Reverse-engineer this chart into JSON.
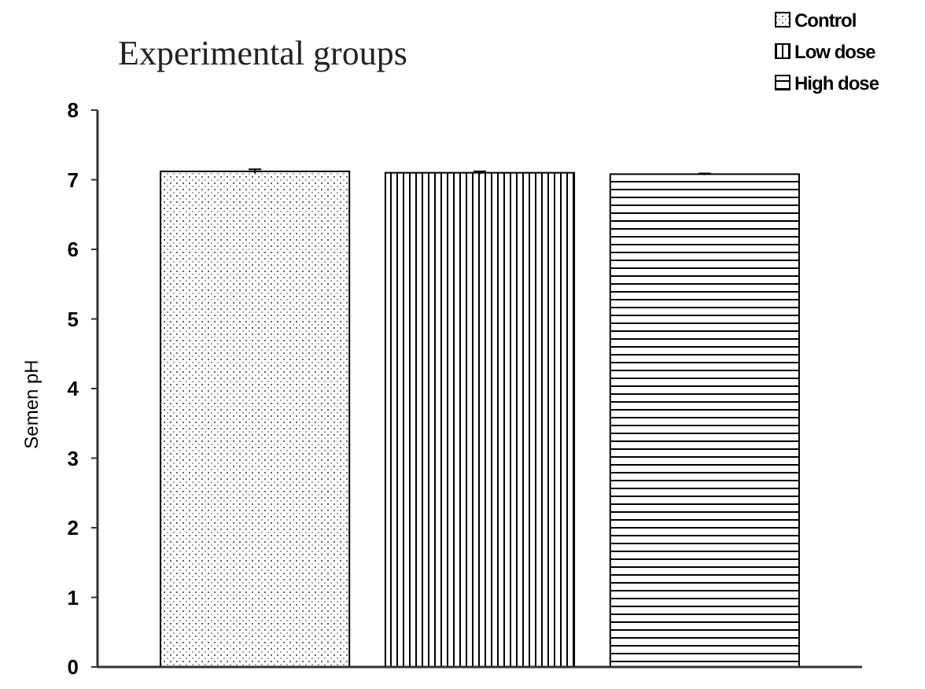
{
  "chart_data": {
    "type": "bar",
    "title": "Experimental groups",
    "ylabel": "Semen pH",
    "categories": [
      null
    ],
    "series": [
      {
        "name": "Control",
        "color": "#000000",
        "values": [
          7.12
        ],
        "errors": [
          0.03
        ]
      },
      {
        "name": "Low dose",
        "color": "#000000",
        "values": [
          7.1
        ],
        "errors": [
          0.02
        ]
      },
      {
        "name": "High dose",
        "color": "#000000",
        "values": [
          7.08
        ],
        "errors": [
          0.01
        ]
      }
    ],
    "ylim": [
      0,
      8
    ],
    "yticks": [
      0,
      1,
      2,
      3,
      4,
      5,
      6,
      7,
      8
    ],
    "legend": "top right",
    "grid": false
  }
}
